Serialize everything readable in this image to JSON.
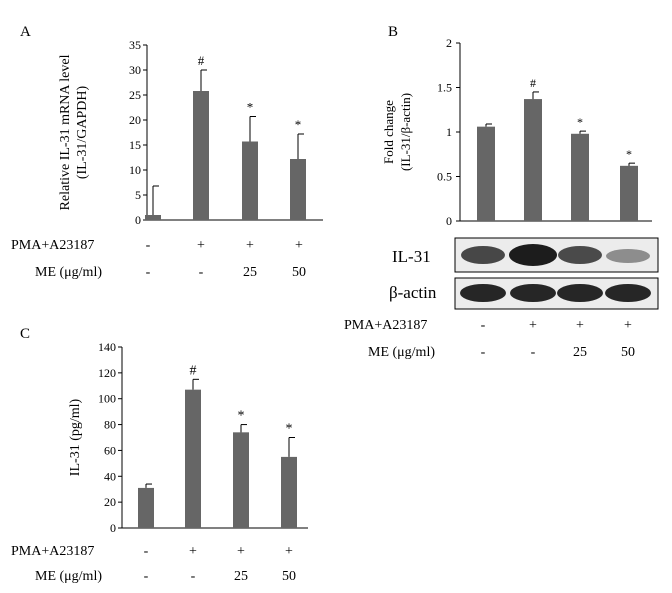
{
  "panels": {
    "a": {
      "letter": "A"
    },
    "b": {
      "letter": "B"
    },
    "c": {
      "letter": "C"
    }
  },
  "treatment_table": {
    "pma_label": "PMA+A23187",
    "me_label": "ME (μg/ml)",
    "pma_values": [
      "-",
      "+",
      "+",
      "+"
    ],
    "me_values": [
      "-",
      "-",
      "25",
      "50"
    ]
  },
  "blot": {
    "band1_label": "IL-31",
    "band2_label": "β-actin"
  },
  "colors": {
    "bar": "#666666",
    "axis": "#000000",
    "blot_bg": "#ececec",
    "band": "#1a1a1a"
  },
  "chart_data": [
    {
      "panel": "A",
      "type": "bar",
      "categories": [
        "1",
        "2",
        "3",
        "4"
      ],
      "values": [
        1,
        25.8,
        15.7,
        12.2
      ],
      "errors": [
        5.8,
        4.2,
        5.0,
        5.0
      ],
      "annotations": [
        "",
        "#",
        "*",
        "*"
      ],
      "ylabel_line1": "Relative IL-31 mRNA level",
      "ylabel_line2": "(IL-31/GAPDH)",
      "ylim": [
        0,
        35
      ],
      "yticks": [
        0,
        5,
        10,
        15,
        20,
        25,
        30,
        35
      ],
      "ytick_labels": [
        "0",
        "5",
        "10",
        "15",
        "20",
        "25",
        "30",
        "35"
      ]
    },
    {
      "panel": "B",
      "type": "bar",
      "categories": [
        "1",
        "2",
        "3",
        "4"
      ],
      "values": [
        1.06,
        1.37,
        0.98,
        0.62
      ],
      "errors": [
        0.03,
        0.08,
        0.03,
        0.03
      ],
      "annotations": [
        "",
        "#",
        "*",
        "*"
      ],
      "ylabel_line1": "Fold change",
      "ylabel_line2": "(IL-31/β-actin)",
      "ylim": [
        0,
        2
      ],
      "yticks": [
        0,
        0.5,
        1,
        1.5,
        2
      ],
      "ytick_labels": [
        "0",
        "0.5",
        "1",
        "1.5",
        "2"
      ]
    },
    {
      "panel": "C",
      "type": "bar",
      "categories": [
        "1",
        "2",
        "3",
        "4"
      ],
      "values": [
        31,
        107,
        74,
        55
      ],
      "errors": [
        3,
        8,
        6,
        15
      ],
      "annotations": [
        "",
        "#",
        "*",
        "*"
      ],
      "ylabel_line1": "IL-31 (pg/ml)",
      "ylabel_line2": "",
      "ylim": [
        0,
        140
      ],
      "yticks": [
        0,
        20,
        40,
        60,
        80,
        100,
        120,
        140
      ],
      "ytick_labels": [
        "0",
        "20",
        "40",
        "60",
        "80",
        "100",
        "120",
        "140"
      ]
    }
  ]
}
